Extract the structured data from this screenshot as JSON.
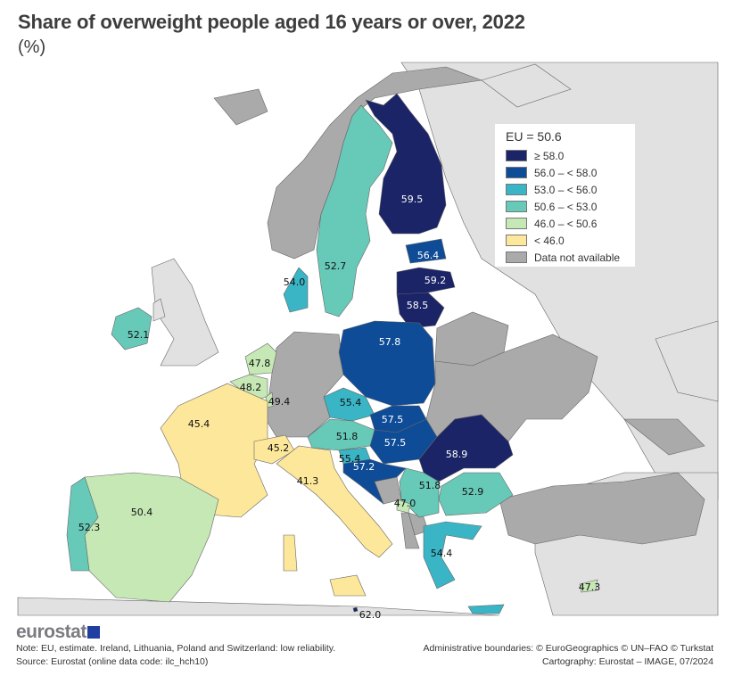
{
  "title": "Share of overweight people aged 16 years or over, 2022",
  "subtitle": "(%)",
  "legend": {
    "eu_label": "EU = 50.6",
    "classes": [
      {
        "label": "≥ 58.0",
        "color": "#1a2466"
      },
      {
        "label": "56.0 – < 58.0",
        "color": "#0f4c97"
      },
      {
        "label": "53.0 – < 56.0",
        "color": "#3ab5c5"
      },
      {
        "label": "50.6 – < 53.0",
        "color": "#67c9b8"
      },
      {
        "label": "46.0 – < 50.6",
        "color": "#c5e8b5"
      },
      {
        "label": "< 46.0",
        "color": "#fde79a"
      },
      {
        "label": "Data not available",
        "color": "#aaaaaa"
      }
    ]
  },
  "colors": {
    "sea": "#ffffff",
    "non_covered_land": "#e1e1e1",
    "border": "#555555"
  },
  "values": [
    {
      "value": "59.5",
      "class": 0
    },
    {
      "value": "52.7",
      "class": 3
    },
    {
      "value": "56.4",
      "class": 1
    },
    {
      "value": "59.2",
      "class": 0
    },
    {
      "value": "58.5",
      "class": 0
    },
    {
      "value": "54.0",
      "class": 2
    },
    {
      "value": "52.1",
      "class": 3
    },
    {
      "value": "57.8",
      "class": 1
    },
    {
      "value": "47.8",
      "class": 4
    },
    {
      "value": "48.2",
      "class": 4
    },
    {
      "value": "49.4",
      "class": 4
    },
    {
      "value": "45.4",
      "class": 5
    },
    {
      "value": "45.2",
      "class": 5
    },
    {
      "value": "41.3",
      "class": 5
    },
    {
      "value": "50.4",
      "class": 4
    },
    {
      "value": "52.3",
      "class": 3
    },
    {
      "value": "55.4",
      "class": 2
    },
    {
      "value": "57.5",
      "class": 1
    },
    {
      "value": "51.8",
      "class": 3
    },
    {
      "value": "57.5",
      "class": 1
    },
    {
      "value": "55.4",
      "class": 2
    },
    {
      "value": "57.2",
      "class": 1
    },
    {
      "value": "58.9",
      "class": 0
    },
    {
      "value": "51.8",
      "class": 3
    },
    {
      "value": "52.9",
      "class": 3
    },
    {
      "value": "47.0",
      "class": 4
    },
    {
      "value": "54.4",
      "class": 2
    },
    {
      "value": "47.3",
      "class": 4
    },
    {
      "value": "62.0",
      "class": 0
    }
  ],
  "logo": "eurostat",
  "footer": {
    "note": "Note: EU, estimate. Ireland, Lithuania, Poland and Switzerland: low reliability.",
    "source": "Source: Eurostat (online data code: ilc_hch10)",
    "boundaries": "Administrative boundaries: © EuroGeographics © UN–FAO © Turkstat",
    "cartography": "Cartography: Eurostat – IMAGE, 07/2024"
  }
}
